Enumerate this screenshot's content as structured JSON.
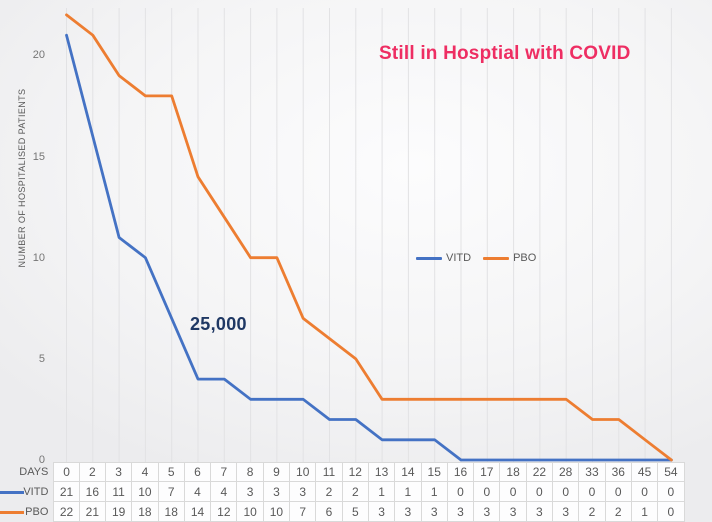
{
  "title": {
    "text": "Still in Hosptial with COVID",
    "color": "#EE2E63"
  },
  "annotation": {
    "text": "25,000",
    "color": "#1F3864"
  },
  "y_axis": {
    "title": "NUMBER OF HOSPITALISED PATIENTS",
    "ticks": [
      0,
      5,
      10,
      15,
      20
    ]
  },
  "legend": {
    "items": [
      {
        "label": "VITD",
        "color": "#4472C4"
      },
      {
        "label": "PBO",
        "color": "#ED7D31"
      }
    ]
  },
  "table": {
    "days_label": "DAYS",
    "row_labels": [
      "VITD",
      "PBO"
    ]
  },
  "colors": {
    "grid": "#e2e2e4",
    "table_border": "#d9d9d9",
    "axis_text": "#757575"
  },
  "chart_data": {
    "type": "line",
    "title": "Still in Hosptial with COVID",
    "xlabel": "DAYS",
    "ylabel": "NUMBER OF HOSPITALISED PATIENTS",
    "categories": [
      0,
      2,
      3,
      4,
      5,
      6,
      7,
      8,
      9,
      10,
      11,
      12,
      13,
      14,
      15,
      16,
      17,
      18,
      22,
      28,
      33,
      36,
      45,
      54
    ],
    "series": [
      {
        "name": "VITD",
        "color": "#4472C4",
        "values": [
          21,
          16,
          11,
          10,
          7,
          4,
          4,
          3,
          3,
          3,
          2,
          2,
          1,
          1,
          1,
          0,
          0,
          0,
          0,
          0,
          0,
          0,
          0,
          0
        ]
      },
      {
        "name": "PBO",
        "color": "#ED7D31",
        "values": [
          22,
          21,
          19,
          18,
          18,
          14,
          12,
          10,
          10,
          7,
          6,
          5,
          3,
          3,
          3,
          3,
          3,
          3,
          3,
          3,
          2,
          2,
          1,
          0
        ]
      }
    ],
    "ylim": [
      0,
      22
    ],
    "y_ticks": [
      0,
      5,
      10,
      15,
      20
    ],
    "grid": "vertical-only",
    "legend_position": "center-right",
    "annotations": [
      {
        "text": "25,000"
      }
    ]
  }
}
